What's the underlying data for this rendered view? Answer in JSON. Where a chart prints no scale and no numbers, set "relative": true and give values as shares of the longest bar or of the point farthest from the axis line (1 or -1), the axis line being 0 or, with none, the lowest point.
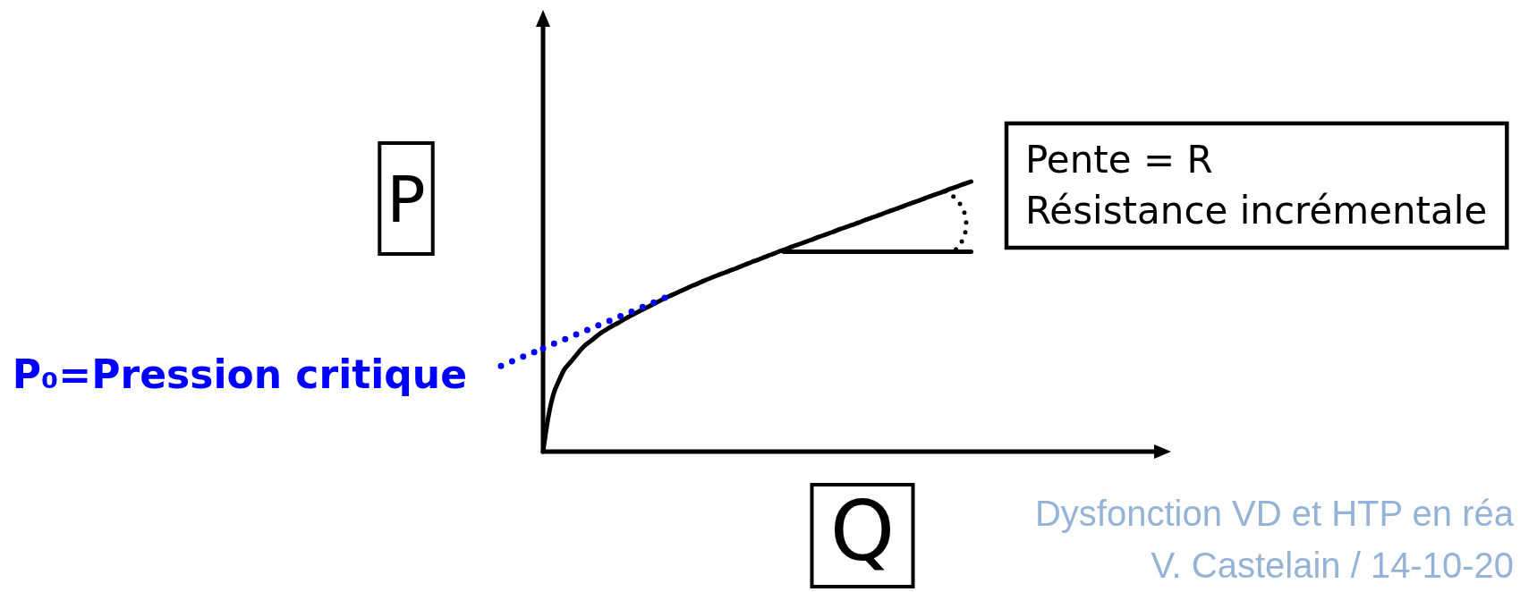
{
  "chart_data": {
    "type": "line",
    "relative": true,
    "xlabel": "Q",
    "ylabel": "P",
    "categories": [
      null,
      null,
      null,
      null,
      null,
      null,
      null,
      null,
      null,
      null,
      null,
      null,
      null,
      null,
      null,
      null,
      null,
      null,
      null,
      null,
      null,
      null,
      null,
      null,
      null,
      null,
      null,
      null,
      null,
      null,
      null,
      null,
      null,
      null,
      null,
      null,
      null,
      null,
      null,
      null,
      null,
      null,
      null,
      null,
      null,
      null,
      null,
      null,
      null,
      null,
      null,
      null,
      null,
      null,
      null,
      null,
      null,
      null,
      null,
      null,
      null,
      null,
      null,
      null,
      null,
      null,
      null,
      null,
      null,
      null,
      null,
      null,
      null,
      null,
      null,
      null,
      null,
      null,
      null,
      null,
      null
    ],
    "series": [
      {
        "color": "#000000",
        "values": [
          0,
          0.13,
          0.216,
          0.264,
          0.305,
          0.328,
          0.352,
          0.376,
          0.396,
          0.411,
          0.427,
          0.442,
          0.454,
          0.466,
          0.476,
          0.488,
          0.499,
          0.51,
          0.52,
          0.53,
          0.54,
          0.55,
          0.56,
          0.57,
          0.579,
          0.588,
          0.597,
          0.606,
          0.615,
          0.623,
          0.632,
          0.64,
          0.648,
          0.656,
          0.663,
          0.671,
          0.678,
          0.686,
          0.694,
          0.702,
          0.709,
          0.717,
          0.725,
          0.732,
          0.74,
          0.747,
          0.755,
          0.762,
          0.769,
          0.776,
          0.783,
          0.791,
          0.798,
          0.805,
          0.812,
          0.82,
          0.827,
          0.834,
          0.841,
          0.848,
          0.856,
          0.863,
          0.87,
          0.877,
          0.885,
          0.892,
          0.899,
          0.906,
          0.914,
          0.921,
          0.928,
          0.935,
          0.943,
          0.95,
          0.957,
          0.964,
          0.972,
          0.979,
          0.986,
          0.993,
          1
        ]
      },
      {
        "color": "#0000ff",
        "line_style": "dotted",
        "values": [
          0.382,
          0.39,
          0.399,
          0.407,
          0.415,
          0.423,
          0.432,
          0.44,
          0.448,
          0.456,
          0.465,
          0.473,
          0.481,
          0.489,
          0.498,
          0.506,
          0.514,
          0.522,
          0.531,
          0.539,
          0.547,
          0.555,
          0.564,
          0.572,
          0.58,
          null,
          null,
          null,
          null,
          null,
          null,
          null,
          null,
          null,
          null,
          null,
          null,
          null,
          null,
          null,
          null,
          null,
          null,
          null,
          null,
          null,
          null,
          null,
          null,
          null,
          null,
          null,
          null,
          null,
          null,
          null,
          null,
          null,
          null,
          null,
          null,
          null,
          null,
          null,
          null,
          null,
          null,
          null,
          null,
          null,
          null,
          null,
          null,
          null,
          null,
          null,
          null,
          null,
          null,
          null,
          null
        ]
      },
      {
        "color": "#000000",
        "values": [
          null,
          null,
          null,
          null,
          null,
          null,
          null,
          null,
          null,
          null,
          null,
          null,
          null,
          null,
          null,
          null,
          null,
          null,
          null,
          null,
          null,
          null,
          null,
          null,
          null,
          null,
          null,
          null,
          null,
          null,
          null,
          null,
          null,
          null,
          null,
          null,
          null,
          null,
          null,
          null,
          null,
          null,
          null,
          null,
          null,
          0.74,
          0.74,
          0.74,
          0.74,
          0.74,
          0.74,
          0.74,
          0.74,
          0.74,
          0.74,
          0.74,
          0.74,
          0.74,
          0.74,
          0.74,
          0.74,
          0.74,
          0.74,
          0.74,
          0.74,
          0.74,
          0.74,
          0.74,
          0.74,
          0.74,
          0.74,
          0.74,
          0.74,
          0.74,
          0.74,
          0.74,
          0.74,
          0.74,
          0.74,
          0.74,
          0.74
        ]
      }
    ],
    "annotations": [
      "P₀=Pression critique",
      "Pente = R\nRésistance incrémentale",
      "Dysfonction VD et HTP en réa\nV. Castelain / 14-10-20"
    ]
  }
}
